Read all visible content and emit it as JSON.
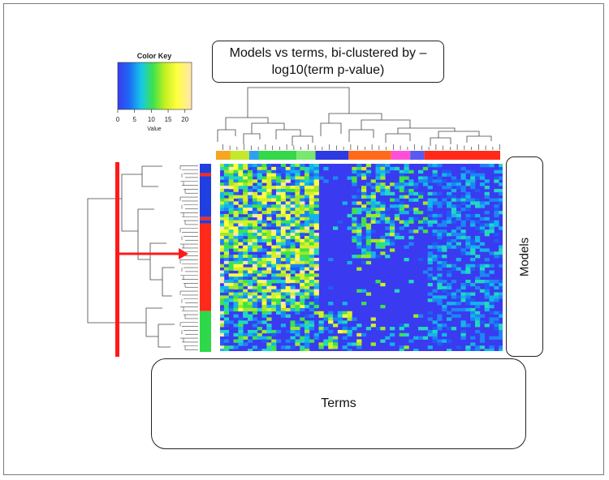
{
  "chart_data": {
    "type": "heatmap",
    "title": "Models vs terms, bi-clustered by –\nlog10(term p-value)",
    "xlabel": "Terms",
    "ylabel": "Models",
    "color_key": {
      "title": "Color Key",
      "label": "Value",
      "range": [
        0,
        22
      ],
      "ticks": [
        0,
        5,
        10,
        15,
        20
      ],
      "tick_labels": [
        "0",
        "5",
        "10",
        "15",
        "20"
      ],
      "colors": [
        "#3a3af0",
        "#1c6cf4",
        "#16c8e8",
        "#3ee24a",
        "#c4f020",
        "#ffff40",
        "#ffe6b0"
      ]
    },
    "n_rows": 60,
    "n_cols": 60,
    "column_cluster_colors": [
      {
        "color": "#f5a623",
        "span": 3
      },
      {
        "color": "#c4e82a",
        "span": 4
      },
      {
        "color": "#2fa0f0",
        "span": 2
      },
      {
        "color": "#34d84a",
        "span": 8
      },
      {
        "color": "#7ae870",
        "span": 4
      },
      {
        "color": "#2c3ae0",
        "span": 7
      },
      {
        "color": "#ff6a1a",
        "span": 9
      },
      {
        "color": "#ff4fd8",
        "span": 4
      },
      {
        "color": "#5a5af0",
        "span": 3
      },
      {
        "color": "#ff2a1a",
        "span": 16
      }
    ],
    "row_cluster_colors": [
      {
        "color": "#1f3fe0",
        "span": 3
      },
      {
        "color": "#ff2a1a",
        "span": 1
      },
      {
        "color": "#1f3fe0",
        "span": 13
      },
      {
        "color": "#ff2a1a",
        "span": 1
      },
      {
        "color": "#1f3fe0",
        "span": 1
      },
      {
        "color": "#ff2a1a",
        "span": 28
      },
      {
        "color": "#2ed84a",
        "span": 13
      }
    ],
    "annotations": [
      "Red vertical bar marking the model cluster split",
      "Red arrow pointing to the model dendrogram"
    ]
  }
}
